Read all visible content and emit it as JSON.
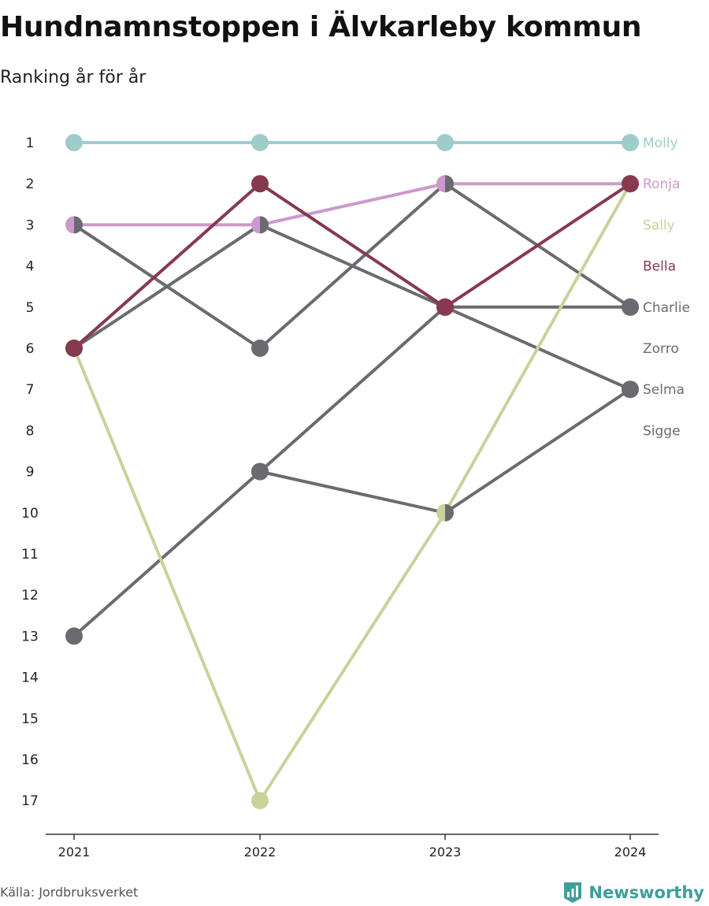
{
  "title": "Hundnamnstoppen i Älvkarleby kommun",
  "subtitle": "Ranking år för år",
  "source": "Källa: Jordbruksverket",
  "brand": "Newsworthy",
  "colors": {
    "accent_teal": "#3e9e9a",
    "gray": "#6b6a70",
    "axis": "#333333"
  },
  "chart_data": {
    "type": "line",
    "x": [
      "2021",
      "2022",
      "2023",
      "2024"
    ],
    "y_ticks": [
      "1",
      "2",
      "3",
      "4",
      "5",
      "6",
      "7",
      "8",
      "9",
      "10",
      "11",
      "12",
      "13",
      "14",
      "15",
      "16",
      "17"
    ],
    "ylim": [
      1,
      17
    ],
    "y_inverted": true,
    "grid": false,
    "series": [
      {
        "name": "Molly",
        "values": [
          1,
          1,
          1,
          1
        ],
        "color": "#9dcccb"
      },
      {
        "name": "Ronja",
        "values": [
          3,
          3,
          2,
          2
        ],
        "color": "#cc99cc"
      },
      {
        "name": "Sally",
        "values": [
          6,
          17,
          10,
          2
        ],
        "color": "#cbd19b"
      },
      {
        "name": "Bella",
        "values": [
          6,
          2,
          5,
          2
        ],
        "color": "#86394f"
      },
      {
        "name": "Charlie",
        "values": [
          6,
          3,
          5,
          5
        ],
        "color": "#6b6a70"
      },
      {
        "name": "Zorro",
        "values": [
          3,
          6,
          2,
          5
        ],
        "color": "#6b6a70"
      },
      {
        "name": "Selma",
        "values": [
          13,
          9,
          5,
          7
        ],
        "color": "#6b6a70"
      },
      {
        "name": "Sigge",
        "values": [
          null,
          9,
          10,
          7
        ],
        "color": "#6b6a70"
      }
    ],
    "end_label_ranks": [
      1,
      2,
      3,
      4,
      5,
      6,
      7,
      8
    ],
    "split_markers": [
      {
        "year": "2021",
        "rank": 3,
        "left": "#cc99cc",
        "right": "#6b6a70"
      },
      {
        "year": "2022",
        "rank": 3,
        "left": "#cc99cc",
        "right": "#6b6a70"
      },
      {
        "year": "2023",
        "rank": 2,
        "left": "#cc99cc",
        "right": "#6b6a70"
      },
      {
        "year": "2023",
        "rank": 10,
        "left": "#cbd19b",
        "right": "#6b6a70"
      }
    ]
  }
}
